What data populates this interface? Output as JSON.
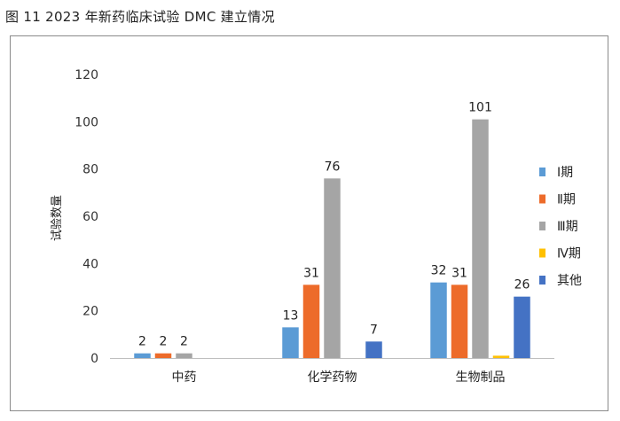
{
  "figure": {
    "title": "图 11   2023 年新药临床试验 DMC 建立情况"
  },
  "chart_data": {
    "type": "bar",
    "categories": [
      "中药",
      "化学药物",
      "生物制品"
    ],
    "series": [
      {
        "name": "Ⅰ期",
        "color": "#5b9bd5",
        "values": [
          2,
          13,
          32
        ]
      },
      {
        "name": "Ⅱ期",
        "color": "#ed6b2a",
        "values": [
          2,
          31,
          31
        ]
      },
      {
        "name": "Ⅲ期",
        "color": "#a5a5a5",
        "values": [
          2,
          76,
          101
        ]
      },
      {
        "name": "Ⅳ期",
        "color": "#ffc000",
        "values": [
          0,
          0,
          1
        ]
      },
      {
        "name": "其他",
        "color": "#4472c4",
        "values": [
          0,
          7,
          26
        ]
      }
    ],
    "data_labels": [
      [
        "2",
        "2",
        "2",
        "",
        ""
      ],
      [
        "13",
        "31",
        "76",
        "",
        "7"
      ],
      [
        "32",
        "31",
        "101",
        "",
        "26"
      ]
    ],
    "ylabel": "试验数量",
    "ylim": [
      0,
      120
    ],
    "yticks": [
      0,
      20,
      40,
      60,
      80,
      100,
      120
    ],
    "grid": false,
    "legend": "right"
  }
}
